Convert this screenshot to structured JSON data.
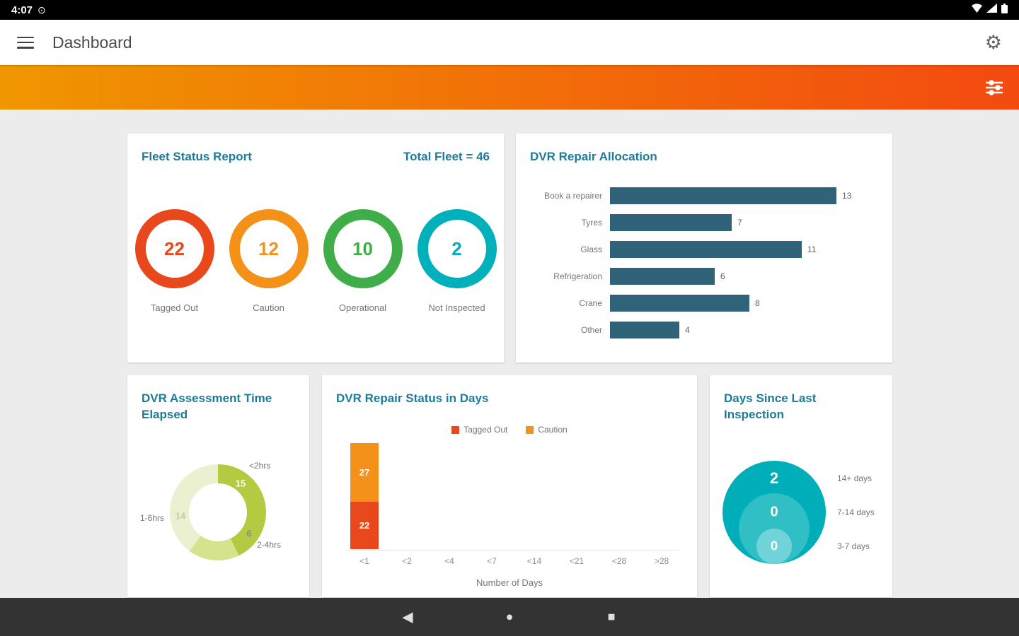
{
  "status_bar": {
    "time": "4:07"
  },
  "app_bar": {
    "title": "Dashboard",
    "settings_glyph": "⚙"
  },
  "banner": {
    "gradient_start": "#f09600",
    "gradient_end": "#f34a10"
  },
  "colors": {
    "card_title": "#1f7a99",
    "muted_text": "#757575",
    "background": "#ececec"
  },
  "cards": {
    "fleet_status": {
      "title": "Fleet Status Report",
      "total_label": "Total Fleet = 46",
      "rings": [
        {
          "value": "22",
          "label": "Tagged Out",
          "color": "#e8481c"
        },
        {
          "value": "12",
          "label": "Caution",
          "color": "#f39119"
        },
        {
          "value": "10",
          "label": "Operational",
          "color": "#3fae49"
        },
        {
          "value": "2",
          "label": "Not Inspected",
          "color": "#00b0ba"
        }
      ]
    },
    "repair_allocation": {
      "title": "DVR Repair Allocation",
      "bar_color": "#30637a",
      "axis_max": 13,
      "items": [
        {
          "label": "Book a repairer",
          "value": 13
        },
        {
          "label": "Tyres",
          "value": 7
        },
        {
          "label": "Glass",
          "value": 11
        },
        {
          "label": "Refrigeration",
          "value": 6
        },
        {
          "label": "Crane",
          "value": 8
        },
        {
          "label": "Other",
          "value": 4
        }
      ]
    },
    "assessment_time": {
      "title": "DVR Assessment Time Elapsed",
      "segments": [
        {
          "label": "<2hrs",
          "value": 15,
          "color": "#b4ca41"
        },
        {
          "label": "2-4hrs",
          "value": 6,
          "color": "#d4e38c"
        },
        {
          "label": "1-6hrs",
          "value": 14,
          "color": "#eaf0d0"
        }
      ]
    },
    "repair_status": {
      "title": "DVR Repair Status in Days",
      "legend": [
        {
          "label": "Tagged Out",
          "color": "#e8481c"
        },
        {
          "label": "Caution",
          "color": "#f39119"
        }
      ],
      "bar": {
        "tagged_out": 22,
        "caution": 27
      },
      "x_ticks": [
        "<1",
        "<2",
        "<4",
        "<7",
        "<14",
        "<21",
        "<28",
        ">28"
      ],
      "xlabel": "Number of Days"
    },
    "days_since_inspection": {
      "title": "Days Since Last Inspection",
      "circles": [
        {
          "value": "2",
          "label": "14+ days",
          "color": "#00aeb9"
        },
        {
          "value": "0",
          "label": "7-14 days",
          "color": "#31bfc6"
        },
        {
          "value": "0",
          "label": "3-7 days",
          "color": "#6fd3d7"
        }
      ]
    }
  },
  "nav_bar": {
    "back_glyph": "◀",
    "home_glyph": "●",
    "recents_glyph": "■"
  }
}
